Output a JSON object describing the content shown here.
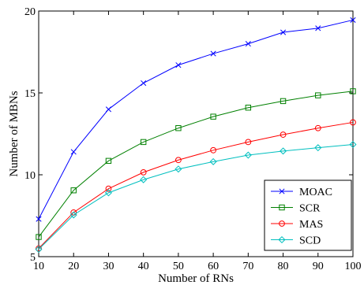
{
  "chart_data": {
    "type": "line",
    "title": "",
    "xlabel": "Number of RNs",
    "ylabel": "Number of MBNs",
    "x": [
      10,
      20,
      30,
      40,
      50,
      60,
      70,
      80,
      90,
      100
    ],
    "xlim": [
      10,
      100
    ],
    "ylim": [
      5,
      20
    ],
    "x_ticks": [
      10,
      20,
      30,
      40,
      50,
      60,
      70,
      80,
      90,
      100
    ],
    "y_ticks": [
      5,
      10,
      15,
      20
    ],
    "grid": false,
    "legend_position": "bottom-right",
    "series": [
      {
        "name": "MOAC",
        "color": "#0000ff",
        "marker": "x",
        "values": [
          7.3,
          11.4,
          14.0,
          15.6,
          16.7,
          17.4,
          18.0,
          18.7,
          18.95,
          19.45
        ]
      },
      {
        "name": "SCR",
        "color": "#008000",
        "marker": "square",
        "values": [
          6.2,
          9.05,
          10.85,
          12.0,
          12.85,
          13.55,
          14.1,
          14.5,
          14.85,
          15.1
        ]
      },
      {
        "name": "MAS",
        "color": "#ff0000",
        "marker": "circle",
        "values": [
          5.5,
          7.7,
          9.15,
          10.15,
          10.9,
          11.5,
          12.0,
          12.45,
          12.85,
          13.2
        ]
      },
      {
        "name": "SCD",
        "color": "#00bfbf",
        "marker": "diamond",
        "values": [
          5.45,
          7.55,
          8.9,
          9.7,
          10.35,
          10.8,
          11.2,
          11.45,
          11.65,
          11.85
        ]
      }
    ]
  }
}
